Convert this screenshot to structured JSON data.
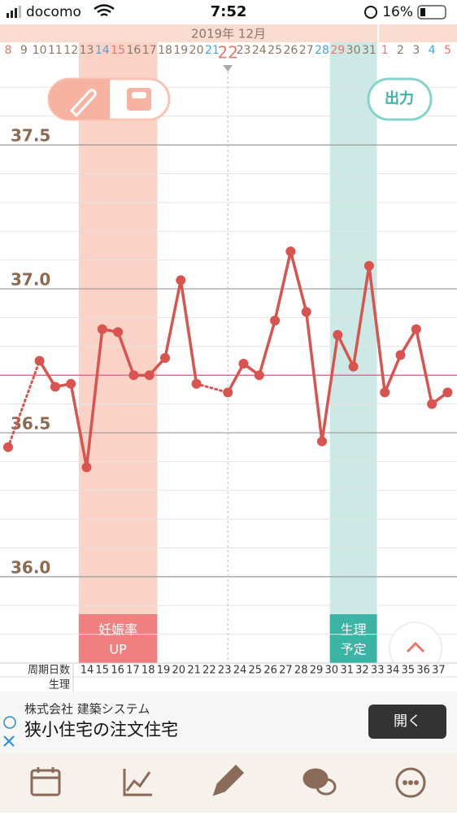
{
  "status_bar": {
    "carrier": "docomo",
    "time": "7:52",
    "battery": "16%"
  },
  "header": {
    "month": "2019年 12月"
  },
  "export_button": "出力",
  "chart_data": {
    "type": "line",
    "categories": [
      "8",
      "9",
      "10",
      "11",
      "12",
      "13",
      "14",
      "15",
      "16",
      "17",
      "18",
      "19",
      "20",
      "21",
      "22",
      "23",
      "24",
      "25",
      "26",
      "27",
      "28",
      "29",
      "30",
      "31",
      "1",
      "2",
      "3",
      "4",
      "5"
    ],
    "category_colors": [
      "#e8776a",
      "#8a7866",
      "#8a7866",
      "#8a7866",
      "#8a7866",
      "#8a7866",
      "#4aa3d9",
      "#e8776a",
      "#8a7866",
      "#8a7866",
      "#8a7866",
      "#8a7866",
      "#8a7866",
      "#4aa3d9",
      "#e8776a",
      "#8a7866",
      "#8a7866",
      "#8a7866",
      "#8a7866",
      "#8a7866",
      "#4aa3d9",
      "#e8776a",
      "#8a7866",
      "#8a7866",
      "#e8776a",
      "#8a7866",
      "#8a7866",
      "#4aa3d9",
      "#e8776a"
    ],
    "today": "22",
    "series": [
      {
        "color": "#d9534f",
        "values": [
          36.45,
          null,
          36.75,
          36.66,
          36.67,
          36.38,
          36.86,
          36.85,
          36.7,
          36.7,
          36.76,
          37.03,
          36.67,
          null,
          36.64,
          36.74,
          36.7,
          36.89,
          37.13,
          36.92,
          36.47,
          36.84,
          36.73,
          37.08,
          36.64,
          36.77,
          36.86,
          36.6,
          36.64
        ]
      }
    ],
    "ylim": [
      35.7,
      37.8
    ],
    "yticks": [
      {
        "value": 36.0,
        "label": "36.0"
      },
      36.5,
      {
        "value": 37.0,
        "label": "37.0"
      },
      37.5
    ],
    "minor_yticks": [
      35.8,
      35.9,
      36.1,
      36.2,
      36.3,
      36.4,
      36.6,
      36.7,
      36.8,
      36.9,
      37.1,
      37.2,
      37.3,
      37.4,
      37.6,
      37.7
    ],
    "coverline": 36.7,
    "coverline_color": "#e36b9a",
    "bands": [
      {
        "from": "13",
        "to": "17",
        "color": "#fbd3c6",
        "label_color": "#f08080",
        "label": [
          "妊娠率",
          "UP"
        ]
      },
      {
        "from": "29",
        "to": "31",
        "color": "#cde9e6",
        "label_color": "#3bb3a5",
        "label": [
          "生理",
          "予定"
        ]
      }
    ]
  },
  "cycle_row": {
    "label": "周期日数",
    "period_label": "生理",
    "days": [
      "14",
      "15",
      "16",
      "17",
      "18",
      "19",
      "20",
      "21",
      "22",
      "23",
      "24",
      "25",
      "26",
      "27",
      "28",
      "29",
      "30",
      "31",
      "32",
      "33",
      "34",
      "35",
      "36",
      "37"
    ]
  },
  "ad": {
    "company": "株式会社 建築システム",
    "headline": "狭小住宅の注文住宅",
    "button": "開く"
  }
}
